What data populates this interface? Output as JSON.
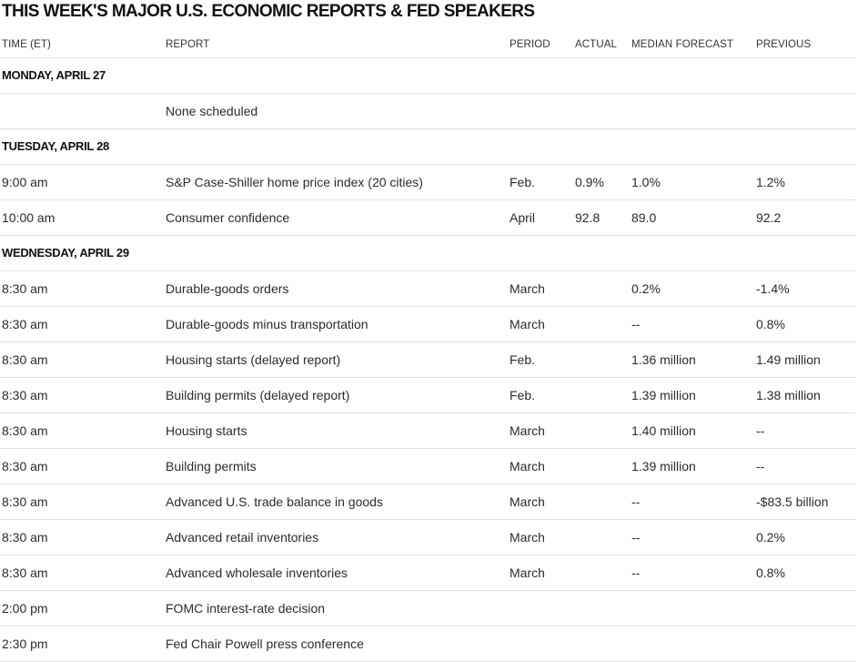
{
  "title": "THIS WEEK'S MAJOR U.S. ECONOMIC REPORTS & FED SPEAKERS",
  "columns": {
    "time": "TIME (ET)",
    "report": "REPORT",
    "period": "PERIOD",
    "actual": "ACTUAL",
    "median": "MEDIAN FORECAST",
    "previous": "PREVIOUS"
  },
  "days": [
    {
      "label": "MONDAY, APRIL 27",
      "rows": [
        {
          "time": "",
          "report": "None scheduled",
          "period": "",
          "actual": "",
          "median": "",
          "previous": ""
        }
      ]
    },
    {
      "label": "TUESDAY, APRIL 28",
      "rows": [
        {
          "time": "9:00 am",
          "report": "S&P Case-Shiller home price index (20 cities)",
          "period": "Feb.",
          "actual": "0.9%",
          "median": "1.0%",
          "previous": "1.2%"
        },
        {
          "time": "10:00 am",
          "report": "Consumer confidence",
          "period": "April",
          "actual": "92.8",
          "median": "89.0",
          "previous": "92.2"
        }
      ]
    },
    {
      "label": "WEDNESDAY, APRIL 29",
      "rows": [
        {
          "time": "8:30 am",
          "report": "Durable-goods orders",
          "period": "March",
          "actual": "",
          "median": "0.2%",
          "previous": "-1.4%"
        },
        {
          "time": "8:30 am",
          "report": "Durable-goods minus transportation",
          "period": "March",
          "actual": "",
          "median": "--",
          "previous": "0.8%"
        },
        {
          "time": "8:30 am",
          "report": "Housing starts (delayed report)",
          "period": "Feb.",
          "actual": "",
          "median": "1.36 million",
          "previous": "1.49 million"
        },
        {
          "time": "8:30 am",
          "report": "Building permits (delayed report)",
          "period": "Feb.",
          "actual": "",
          "median": "1.39 million",
          "previous": "1.38 million"
        },
        {
          "time": "8:30 am",
          "report": "Housing starts",
          "period": "March",
          "actual": "",
          "median": "1.40 million",
          "previous": "--"
        },
        {
          "time": "8:30 am",
          "report": "Building permits",
          "period": "March",
          "actual": "",
          "median": "1.39 million",
          "previous": "--"
        },
        {
          "time": "8:30 am",
          "report": "Advanced U.S. trade balance in goods",
          "period": "March",
          "actual": "",
          "median": "--",
          "previous": "-$83.5 billion"
        },
        {
          "time": "8:30 am",
          "report": "Advanced retail inventories",
          "period": "March",
          "actual": "",
          "median": "--",
          "previous": "0.2%"
        },
        {
          "time": "8:30 am",
          "report": "Advanced wholesale inventories",
          "period": "March",
          "actual": "",
          "median": "--",
          "previous": "0.8%"
        },
        {
          "time": "2:00 pm",
          "report": "FOMC interest-rate decision",
          "period": "",
          "actual": "",
          "median": "",
          "previous": ""
        },
        {
          "time": "2:30 pm",
          "report": "Fed Chair Powell press conference",
          "period": "",
          "actual": "",
          "median": "",
          "previous": ""
        }
      ]
    }
  ]
}
